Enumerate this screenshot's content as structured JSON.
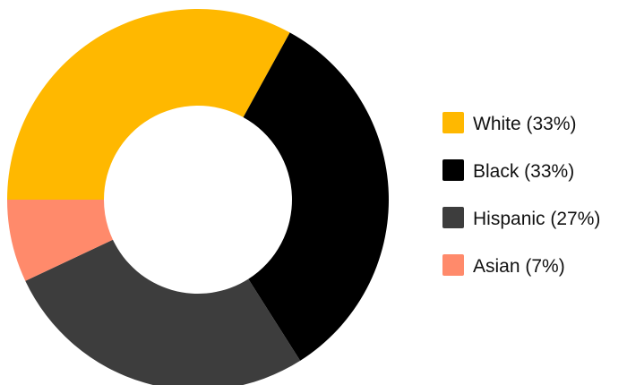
{
  "chart_data": {
    "type": "pie",
    "variant": "donut",
    "title": "",
    "legend_position": "right",
    "slices": [
      {
        "label": "White",
        "value": 33,
        "legend_label": "White (33%)",
        "color": "#FFB800"
      },
      {
        "label": "Black",
        "value": 33,
        "legend_label": "Black (33%)",
        "color": "#000000"
      },
      {
        "label": "Hispanic",
        "value": 27,
        "legend_label": "Hispanic (27%)",
        "color": "#3D3D3D"
      },
      {
        "label": "Asian",
        "value": 7,
        "legend_label": "Asian (7%)",
        "color": "#FF8A6B"
      }
    ]
  }
}
